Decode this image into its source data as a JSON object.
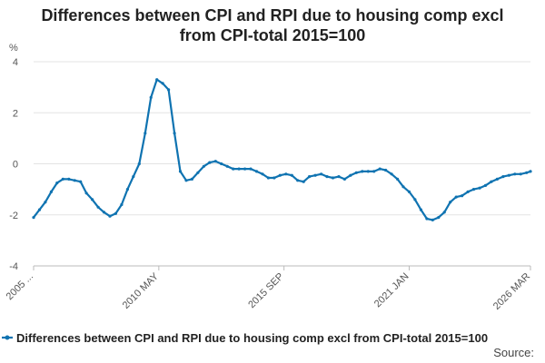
{
  "chart_data": {
    "type": "line",
    "title_lines": [
      "Differences between CPI and RPI due to housing comp excl",
      "from CPI-total 2015=100"
    ],
    "ylabel": "%",
    "ylim": [
      -4,
      4
    ],
    "yticks": [
      4,
      2,
      0,
      -2,
      -4
    ],
    "xlim": [
      "2005 JAN",
      "2026 MAR"
    ],
    "xtick_labels": [
      "2005 ...",
      "2010 MAY",
      "2015 SEP",
      "2021 JAN",
      "2026 MAR"
    ],
    "xtick_positions": [
      "2005 JAN",
      "2010 MAY",
      "2015 SEP",
      "2021 JAN",
      "2026 MAR"
    ],
    "grid": "horizontal",
    "legend_position": "bottom",
    "source_label": "Source:",
    "color": "#0f73b1",
    "series": [
      {
        "name": "Differences between CPI and RPI due to housing comp excl from CPI-total 2015=100",
        "points": [
          [
            "2005 JAN",
            -2.1
          ],
          [
            "2005 APR",
            -1.8
          ],
          [
            "2005 JUL",
            -1.5
          ],
          [
            "2005 OCT",
            -1.1
          ],
          [
            "2006 JAN",
            -0.75
          ],
          [
            "2006 APR",
            -0.6
          ],
          [
            "2006 JUL",
            -0.6
          ],
          [
            "2006 OCT",
            -0.65
          ],
          [
            "2007 JAN",
            -0.7
          ],
          [
            "2007 APR",
            -1.15
          ],
          [
            "2007 JUL",
            -1.4
          ],
          [
            "2007 OCT",
            -1.7
          ],
          [
            "2008 JAN",
            -1.9
          ],
          [
            "2008 APR",
            -2.05
          ],
          [
            "2008 JUL",
            -1.95
          ],
          [
            "2008 OCT",
            -1.6
          ],
          [
            "2009 JAN",
            -1.0
          ],
          [
            "2009 APR",
            -0.5
          ],
          [
            "2009 JUL",
            0.0
          ],
          [
            "2009 OCT",
            1.2
          ],
          [
            "2010 JAN",
            2.6
          ],
          [
            "2010 APR",
            3.3
          ],
          [
            "2010 JUL",
            3.15
          ],
          [
            "2010 OCT",
            2.9
          ],
          [
            "2011 JAN",
            1.2
          ],
          [
            "2011 APR",
            -0.3
          ],
          [
            "2011 JUL",
            -0.65
          ],
          [
            "2011 OCT",
            -0.6
          ],
          [
            "2012 JAN",
            -0.35
          ],
          [
            "2012 APR",
            -0.1
          ],
          [
            "2012 JUL",
            0.05
          ],
          [
            "2012 OCT",
            0.1
          ],
          [
            "2013 JAN",
            0.0
          ],
          [
            "2013 APR",
            -0.1
          ],
          [
            "2013 JUL",
            -0.2
          ],
          [
            "2013 OCT",
            -0.2
          ],
          [
            "2014 JAN",
            -0.2
          ],
          [
            "2014 APR",
            -0.2
          ],
          [
            "2014 JUL",
            -0.3
          ],
          [
            "2014 OCT",
            -0.4
          ],
          [
            "2015 JAN",
            -0.55
          ],
          [
            "2015 APR",
            -0.55
          ],
          [
            "2015 JUL",
            -0.45
          ],
          [
            "2015 OCT",
            -0.4
          ],
          [
            "2016 JAN",
            -0.45
          ],
          [
            "2016 APR",
            -0.65
          ],
          [
            "2016 JUL",
            -0.7
          ],
          [
            "2016 OCT",
            -0.5
          ],
          [
            "2017 JAN",
            -0.45
          ],
          [
            "2017 APR",
            -0.4
          ],
          [
            "2017 JUL",
            -0.5
          ],
          [
            "2017 OCT",
            -0.55
          ],
          [
            "2018 JAN",
            -0.5
          ],
          [
            "2018 APR",
            -0.6
          ],
          [
            "2018 JUL",
            -0.45
          ],
          [
            "2018 OCT",
            -0.35
          ],
          [
            "2019 JAN",
            -0.3
          ],
          [
            "2019 APR",
            -0.3
          ],
          [
            "2019 JUL",
            -0.3
          ],
          [
            "2019 OCT",
            -0.2
          ],
          [
            "2020 JAN",
            -0.25
          ],
          [
            "2020 APR",
            -0.4
          ],
          [
            "2020 JUL",
            -0.6
          ],
          [
            "2020 OCT",
            -0.9
          ],
          [
            "2021 JAN",
            -1.1
          ],
          [
            "2021 APR",
            -1.4
          ],
          [
            "2021 JUL",
            -1.8
          ],
          [
            "2021 OCT",
            -2.15
          ],
          [
            "2022 JAN",
            -2.2
          ],
          [
            "2022 APR",
            -2.1
          ],
          [
            "2022 JUL",
            -1.9
          ],
          [
            "2022 OCT",
            -1.5
          ],
          [
            "2023 JAN",
            -1.3
          ],
          [
            "2023 APR",
            -1.25
          ],
          [
            "2023 JUL",
            -1.1
          ],
          [
            "2023 OCT",
            -1.0
          ],
          [
            "2024 JAN",
            -0.95
          ],
          [
            "2024 APR",
            -0.85
          ],
          [
            "2024 JUL",
            -0.7
          ],
          [
            "2024 OCT",
            -0.6
          ],
          [
            "2025 JAN",
            -0.5
          ],
          [
            "2025 APR",
            -0.45
          ],
          [
            "2025 JUL",
            -0.4
          ],
          [
            "2025 OCT",
            -0.4
          ],
          [
            "2026 JAN",
            -0.35
          ],
          [
            "2026 MAR",
            -0.3
          ]
        ]
      }
    ]
  }
}
